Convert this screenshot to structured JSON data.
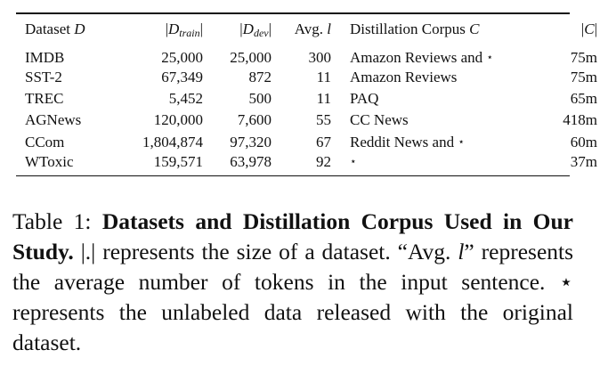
{
  "table": {
    "header": {
      "dataset": "Dataset",
      "dataset_var": "D",
      "train_base": "D",
      "train_sub": "train",
      "dev_base": "D",
      "dev_sub": "dev",
      "avg_prefix": "Avg.",
      "avg_var": "l",
      "corpus_prefix": "Distillation Corpus",
      "corpus_var": "C",
      "size_var": "C"
    },
    "rows": [
      {
        "dataset": "IMDB",
        "train": "25,000",
        "dev": "25,000",
        "avg": "300",
        "corpus": "Amazon Reviews and",
        "star": "⋆",
        "size": "75m"
      },
      {
        "dataset": "SST-2",
        "train": "67,349",
        "dev": "872",
        "avg": "11",
        "corpus": "Amazon Reviews",
        "star": "",
        "size": "75m"
      },
      {
        "dataset": "TREC",
        "train": "5,452",
        "dev": "500",
        "avg": "11",
        "corpus": "PAQ",
        "star": "",
        "size": "65m"
      },
      {
        "dataset": "AGNews",
        "train": "120,000",
        "dev": "7,600",
        "avg": "55",
        "corpus": "CC News",
        "star": "",
        "size": "418m"
      },
      {
        "dataset": "CCom",
        "train": "1,804,874",
        "dev": "97,320",
        "avg": "67",
        "corpus": "Reddit News and",
        "star": "⋆",
        "size": "60m"
      },
      {
        "dataset": "WToxic",
        "train": "159,571",
        "dev": "63,978",
        "avg": "92",
        "corpus": "",
        "star": "⋆",
        "size": "37m"
      }
    ]
  },
  "caption": {
    "label": "Table 1:",
    "bold": "Datasets and Distillation Corpus Used in Our Study.",
    "part1": "|.| represents the size of a dataset. “Avg.",
    "var_l": "l",
    "part2": "” represents the average number of tokens in the input sentence.",
    "star": "⋆",
    "part3": "represents the unlabeled data released with the original dataset."
  }
}
